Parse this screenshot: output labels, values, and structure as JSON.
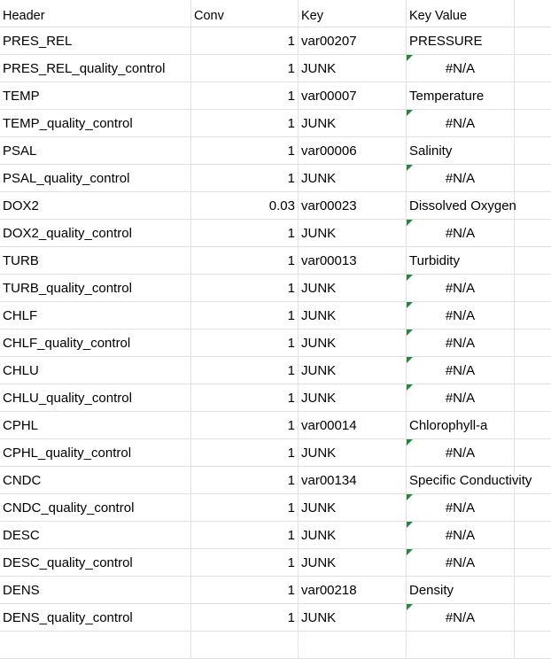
{
  "header": {
    "col_a": "Header",
    "col_b": "Conv",
    "col_c": "Key",
    "col_d": "Key Value"
  },
  "rows": [
    {
      "header": "PRES_REL",
      "conv": "1",
      "key": "var00207",
      "key_value": "PRESSURE",
      "flag": false
    },
    {
      "header": "PRES_REL_quality_control",
      "conv": "1",
      "key": "JUNK",
      "key_value": "#N/A",
      "flag": true
    },
    {
      "header": "TEMP",
      "conv": "1",
      "key": "var00007",
      "key_value": "Temperature",
      "flag": false
    },
    {
      "header": "TEMP_quality_control",
      "conv": "1",
      "key": "JUNK",
      "key_value": "#N/A",
      "flag": true
    },
    {
      "header": "PSAL",
      "conv": "1",
      "key": "var00006",
      "key_value": "Salinity",
      "flag": false
    },
    {
      "header": "PSAL_quality_control",
      "conv": "1",
      "key": "JUNK",
      "key_value": "#N/A",
      "flag": true
    },
    {
      "header": "DOX2",
      "conv": "0.03",
      "key": "var00023",
      "key_value": "Dissolved Oxygen",
      "flag": false
    },
    {
      "header": "DOX2_quality_control",
      "conv": "1",
      "key": "JUNK",
      "key_value": "#N/A",
      "flag": true
    },
    {
      "header": "TURB",
      "conv": "1",
      "key": "var00013",
      "key_value": "Turbidity",
      "flag": false
    },
    {
      "header": "TURB_quality_control",
      "conv": "1",
      "key": "JUNK",
      "key_value": "#N/A",
      "flag": true
    },
    {
      "header": "CHLF",
      "conv": "1",
      "key": "JUNK",
      "key_value": "#N/A",
      "flag": true
    },
    {
      "header": "CHLF_quality_control",
      "conv": "1",
      "key": "JUNK",
      "key_value": "#N/A",
      "flag": true
    },
    {
      "header": "CHLU",
      "conv": "1",
      "key": "JUNK",
      "key_value": "#N/A",
      "flag": true
    },
    {
      "header": "CHLU_quality_control",
      "conv": "1",
      "key": "JUNK",
      "key_value": "#N/A",
      "flag": true
    },
    {
      "header": "CPHL",
      "conv": "1",
      "key": "var00014",
      "key_value": "Chlorophyll-a",
      "flag": false
    },
    {
      "header": "CPHL_quality_control",
      "conv": "1",
      "key": "JUNK",
      "key_value": "#N/A",
      "flag": true
    },
    {
      "header": "CNDC",
      "conv": "1",
      "key": "var00134",
      "key_value": "Specific Conductivity",
      "flag": false
    },
    {
      "header": "CNDC_quality_control",
      "conv": "1",
      "key": "JUNK",
      "key_value": "#N/A",
      "flag": true
    },
    {
      "header": "DESC",
      "conv": "1",
      "key": "JUNK",
      "key_value": "#N/A",
      "flag": true
    },
    {
      "header": "DESC_quality_control",
      "conv": "1",
      "key": "JUNK",
      "key_value": "#N/A",
      "flag": true
    },
    {
      "header": "DENS",
      "conv": "1",
      "key": "var00218",
      "key_value": "Density",
      "flag": false
    },
    {
      "header": "DENS_quality_control",
      "conv": "1",
      "key": "JUNK",
      "key_value": "#N/A",
      "flag": true
    }
  ],
  "colors": {
    "gridline": "#e1e1e1",
    "error_indicator": "#1e8a3a"
  }
}
